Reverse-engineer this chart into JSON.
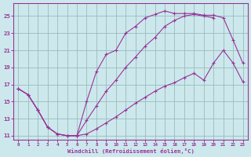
{
  "background_color": "#cce8ec",
  "grid_color": "#99bbbb",
  "line_color": "#993399",
  "spine_color": "#993399",
  "xlim": [
    -0.5,
    23.5
  ],
  "ylim": [
    10.5,
    26.5
  ],
  "yticks": [
    11,
    13,
    15,
    17,
    19,
    21,
    23,
    25
  ],
  "xticks": [
    0,
    1,
    2,
    3,
    4,
    5,
    6,
    7,
    8,
    9,
    10,
    11,
    12,
    13,
    14,
    15,
    16,
    17,
    18,
    19,
    20,
    21,
    22,
    23
  ],
  "xlabel": "Windchill (Refroidissement éolien,°C)",
  "line1_x": [
    0,
    1,
    2,
    3,
    4,
    5,
    6,
    7,
    8,
    9,
    10,
    11,
    12,
    13,
    14,
    15,
    16,
    17,
    18,
    19,
    20,
    21,
    22,
    23
  ],
  "line1_y": [
    16.5,
    15.8,
    14.0,
    12.0,
    11.2,
    11.0,
    11.0,
    15.0,
    18.5,
    20.5,
    21.0,
    23.0,
    23.8,
    24.8,
    25.2,
    25.6,
    25.3,
    25.3,
    25.3,
    25.1,
    25.1,
    24.8,
    22.2,
    19.5
  ],
  "line2_x": [
    0,
    1,
    2,
    3,
    4,
    5,
    6,
    7,
    8,
    9,
    10,
    11,
    12,
    13,
    14,
    15,
    16,
    17,
    18,
    19,
    20
  ],
  "line2_y": [
    16.5,
    15.8,
    14.0,
    12.0,
    11.2,
    11.0,
    11.0,
    12.8,
    14.5,
    16.2,
    17.5,
    19.0,
    20.2,
    21.5,
    22.5,
    23.8,
    24.5,
    25.0,
    25.2,
    25.0,
    24.8
  ],
  "line3_x": [
    0,
    1,
    2,
    3,
    4,
    5,
    6,
    7,
    8,
    9,
    10,
    11,
    12,
    13,
    14,
    15,
    16,
    17,
    18,
    19,
    20,
    21,
    22,
    23
  ],
  "line3_y": [
    16.5,
    15.8,
    14.0,
    12.0,
    11.2,
    11.0,
    11.0,
    11.2,
    11.8,
    12.5,
    13.2,
    14.0,
    14.8,
    15.5,
    16.2,
    16.8,
    17.2,
    17.8,
    18.3,
    17.5,
    19.5,
    21.0,
    19.5,
    17.3
  ]
}
